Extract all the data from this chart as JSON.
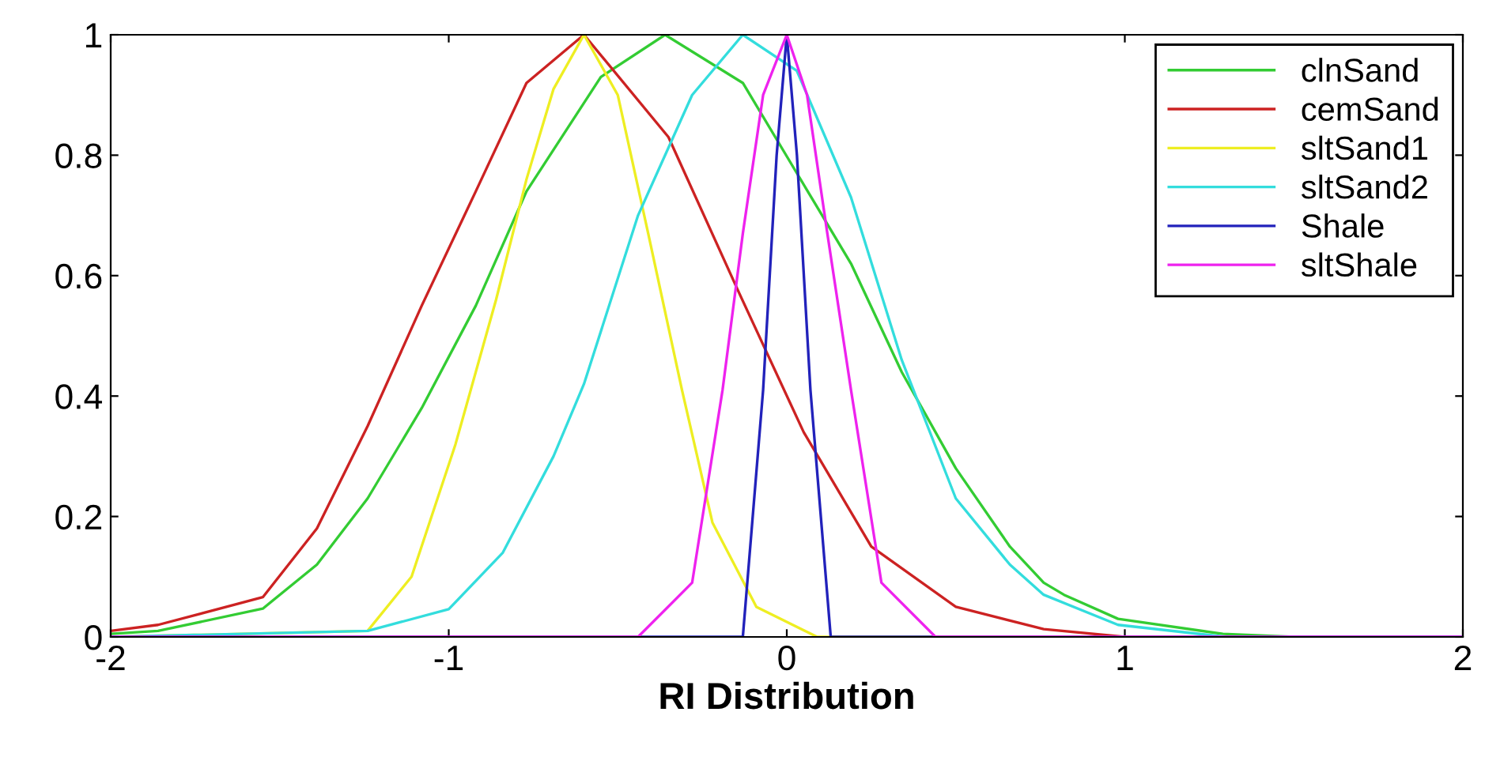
{
  "chart_data": {
    "type": "line",
    "xlabel": "RI Distribution",
    "xlim": [
      -2,
      2
    ],
    "ylim": [
      0,
      1
    ],
    "xticks": [
      -2,
      -1,
      0,
      1,
      2
    ],
    "yticks": [
      0,
      0.2,
      0.4,
      0.6,
      0.8,
      1
    ],
    "grid": false,
    "legend": "top right",
    "marker": "none",
    "line_style": "solid",
    "series": [
      {
        "name": "clnSand",
        "color": "#33cc33",
        "x": [
          -2,
          -1.86,
          -1.55,
          -1.39,
          -1.24,
          -1.08,
          -0.92,
          -0.77,
          -0.55,
          -0.36,
          -0.13,
          0.03,
          0.19,
          0.34,
          0.5,
          0.66,
          0.76,
          0.82,
          0.98,
          1.29,
          1.5,
          2
        ],
        "values": [
          0.005,
          0.01,
          0.047,
          0.12,
          0.23,
          0.38,
          0.55,
          0.74,
          0.93,
          1,
          0.92,
          0.77,
          0.62,
          0.44,
          0.28,
          0.15,
          0.09,
          0.07,
          0.03,
          0.005,
          0,
          0
        ]
      },
      {
        "name": "cemSand",
        "color": "#cc2222",
        "x": [
          -2,
          -1.86,
          -1.55,
          -1.39,
          -1.24,
          -1.08,
          -0.92,
          -0.77,
          -0.6,
          -0.35,
          -0.14,
          0.05,
          0.25,
          0.5,
          0.76,
          1,
          2
        ],
        "values": [
          0.01,
          0.02,
          0.066,
          0.18,
          0.35,
          0.55,
          0.74,
          0.92,
          1,
          0.83,
          0.57,
          0.34,
          0.15,
          0.05,
          0.013,
          0,
          0
        ]
      },
      {
        "name": "sltSand1",
        "color": "#eeee22",
        "x": [
          -2,
          -1.24,
          -1.11,
          -0.98,
          -0.86,
          -0.77,
          -0.69,
          -0.6,
          -0.5,
          -0.41,
          -0.31,
          -0.22,
          -0.09,
          0.09,
          2
        ],
        "values": [
          0,
          0.01,
          0.1,
          0.32,
          0.56,
          0.76,
          0.91,
          1,
          0.9,
          0.67,
          0.41,
          0.19,
          0.05,
          0,
          0
        ]
      },
      {
        "name": "sltSand2",
        "color": "#33dddd",
        "x": [
          -2,
          -1.24,
          -1.0,
          -0.84,
          -0.69,
          -0.6,
          -0.44,
          -0.28,
          -0.13,
          0.03,
          0.19,
          0.34,
          0.5,
          0.66,
          0.76,
          0.98,
          1.3,
          2
        ],
        "values": [
          0,
          0.01,
          0.046,
          0.14,
          0.3,
          0.42,
          0.7,
          0.9,
          1,
          0.94,
          0.73,
          0.46,
          0.23,
          0.12,
          0.07,
          0.02,
          0,
          0
        ]
      },
      {
        "name": "Shale",
        "color": "#2222bb",
        "x": [
          -2,
          -0.13,
          -0.07,
          -0.03,
          0,
          0.03,
          0.07,
          0.13,
          2
        ],
        "values": [
          0,
          0,
          0.41,
          0.8,
          1,
          0.8,
          0.41,
          0,
          0
        ]
      },
      {
        "name": "sltShale",
        "color": "#ee22ee",
        "x": [
          -2,
          -0.44,
          -0.28,
          -0.19,
          -0.13,
          -0.07,
          0,
          0.06,
          0.12,
          0.19,
          0.28,
          0.44,
          2
        ],
        "values": [
          0,
          0,
          0.09,
          0.41,
          0.67,
          0.9,
          1,
          0.9,
          0.67,
          0.41,
          0.09,
          0,
          0
        ]
      }
    ]
  }
}
